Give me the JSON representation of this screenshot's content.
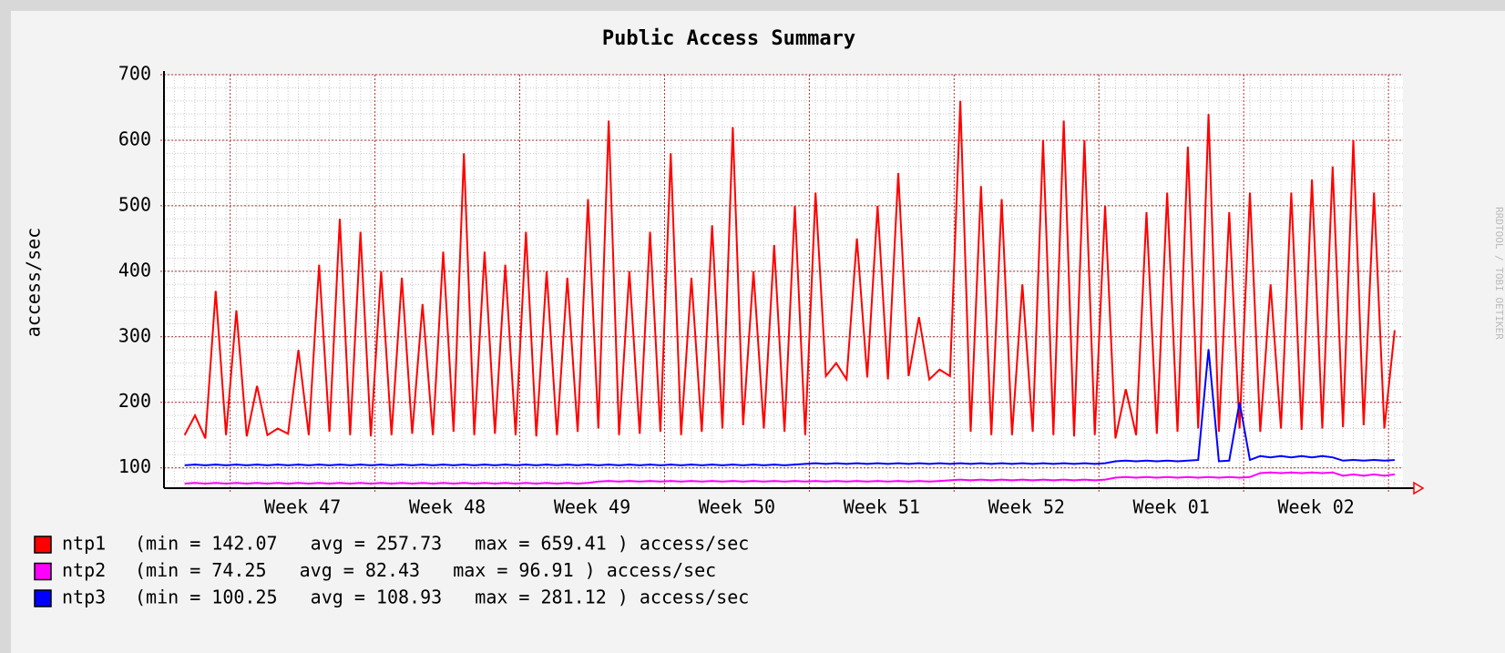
{
  "chart_data": {
    "type": "line",
    "title": "Public Access Summary",
    "y_label": "access/sec",
    "watermark": "RRDTOOL / TOBI OETIKER",
    "xlim": [
      0,
      59.9
    ],
    "ylim": [
      69,
      700
    ],
    "yticks": [
      100,
      200,
      300,
      400,
      500,
      600,
      700
    ],
    "xticks": [
      {
        "value": 6.7,
        "label": "Week 47"
      },
      {
        "value": 13.7,
        "label": "Week 48"
      },
      {
        "value": 20.7,
        "label": "Week 49"
      },
      {
        "value": 27.7,
        "label": "Week 50"
      },
      {
        "value": 34.7,
        "label": "Week 51"
      },
      {
        "value": 41.7,
        "label": "Week 52"
      },
      {
        "value": 48.7,
        "label": "Week 01"
      },
      {
        "value": 55.7,
        "label": "Week 02"
      }
    ],
    "xgrid_major": [
      3.2,
      10.2,
      17.2,
      24.2,
      31.2,
      38.2,
      45.2,
      52.2,
      59.2
    ],
    "xgrid_minor_step": 0.5,
    "ygrid_minor_step": 20,
    "grid": true,
    "x": [
      1,
      1.5,
      2,
      2.5,
      3,
      3.5,
      4,
      4.5,
      5,
      5.5,
      6,
      6.5,
      7,
      7.5,
      8,
      8.5,
      9,
      9.5,
      10,
      10.5,
      11,
      11.5,
      12,
      12.5,
      13,
      13.5,
      14,
      14.5,
      15,
      15.5,
      16,
      16.5,
      17,
      17.5,
      18,
      18.5,
      19,
      19.5,
      20,
      20.5,
      21,
      21.5,
      22,
      22.5,
      23,
      23.5,
      24,
      24.5,
      25,
      25.5,
      26,
      26.5,
      27,
      27.5,
      28,
      28.5,
      29,
      29.5,
      30,
      30.5,
      31,
      31.5,
      32,
      32.5,
      33,
      33.5,
      34,
      34.5,
      35,
      35.5,
      36,
      36.5,
      37,
      37.5,
      38,
      38.5,
      39,
      39.5,
      40,
      40.5,
      41,
      41.5,
      42,
      42.5,
      43,
      43.5,
      44,
      44.5,
      45,
      45.5,
      46,
      46.5,
      47,
      47.5,
      48,
      48.5,
      49,
      49.5,
      50,
      50.5,
      51,
      51.5,
      52,
      52.5,
      53,
      53.5,
      54,
      54.5,
      55,
      55.5,
      56,
      56.5,
      57,
      57.5,
      58,
      58.5,
      59,
      59.5
    ],
    "series": [
      {
        "name": "ntp1",
        "legend_text": "(min = 142.07   avg = 257.73   max = 659.41 ) access/sec",
        "color": "#ff0000",
        "values": [
          150,
          180,
          145,
          370,
          150,
          340,
          148,
          225,
          150,
          160,
          152,
          280,
          150,
          410,
          155,
          480,
          150,
          460,
          148,
          400,
          150,
          390,
          152,
          350,
          150,
          430,
          155,
          580,
          150,
          430,
          152,
          410,
          150,
          460,
          148,
          400,
          150,
          390,
          155,
          510,
          160,
          630,
          150,
          400,
          152,
          460,
          155,
          580,
          150,
          390,
          155,
          470,
          160,
          620,
          165,
          400,
          160,
          440,
          155,
          500,
          150,
          520,
          240,
          260,
          235,
          450,
          238,
          500,
          235,
          550,
          240,
          330,
          235,
          250,
          240,
          660,
          155,
          530,
          150,
          510,
          150,
          380,
          155,
          600,
          150,
          630,
          148,
          600,
          150,
          500,
          145,
          220,
          150,
          490,
          152,
          520,
          155,
          590,
          160,
          640,
          155,
          490,
          160,
          520,
          155,
          380,
          160,
          520,
          158,
          540,
          160,
          560,
          162,
          600,
          165,
          520,
          160,
          310
        ]
      },
      {
        "name": "ntp2",
        "legend_text": "(min = 74.25   avg = 82.43   max = 96.91 ) access/sec",
        "color": "#ff00ff",
        "values": [
          76,
          77,
          76,
          77,
          76,
          77,
          76,
          77,
          76,
          77,
          76,
          77,
          76,
          77,
          76,
          77,
          76,
          77,
          76,
          77,
          76,
          77,
          76,
          77,
          76,
          77,
          76,
          77,
          76,
          77,
          76,
          77,
          76,
          77,
          76,
          77,
          76,
          77,
          76,
          77,
          79,
          80,
          79,
          80,
          79,
          80,
          79,
          80,
          79,
          80,
          79,
          80,
          79,
          80,
          79,
          80,
          79,
          80,
          79,
          80,
          79,
          80,
          79,
          80,
          79,
          80,
          79,
          80,
          79,
          80,
          79,
          80,
          79,
          80,
          81,
          82,
          81,
          82,
          81,
          82,
          81,
          82,
          81,
          82,
          81,
          82,
          81,
          82,
          81,
          82,
          85,
          86,
          85,
          86,
          85,
          86,
          85,
          86,
          85,
          86,
          85,
          86,
          85,
          86,
          92,
          93,
          92,
          93,
          92,
          93,
          92,
          93,
          88,
          90,
          88,
          90,
          88,
          90
        ]
      },
      {
        "name": "ntp3",
        "legend_text": "(min = 100.25   avg = 108.93   max = 281.12 ) access/sec",
        "color": "#0000ff",
        "values": [
          104,
          105,
          104,
          105,
          104,
          105,
          104,
          105,
          104,
          105,
          104,
          105,
          104,
          105,
          104,
          105,
          104,
          105,
          104,
          105,
          104,
          105,
          104,
          105,
          104,
          105,
          104,
          105,
          104,
          105,
          104,
          105,
          104,
          105,
          104,
          105,
          104,
          105,
          104,
          105,
          104,
          105,
          104,
          105,
          104,
          105,
          104,
          105,
          104,
          105,
          104,
          105,
          104,
          105,
          104,
          105,
          104,
          105,
          104,
          105,
          106,
          107,
          106,
          107,
          106,
          107,
          106,
          107,
          106,
          107,
          106,
          107,
          106,
          107,
          106,
          107,
          106,
          107,
          106,
          107,
          106,
          107,
          106,
          107,
          106,
          107,
          106,
          107,
          106,
          107,
          110,
          111,
          110,
          111,
          110,
          111,
          110,
          111,
          112,
          281,
          110,
          111,
          200,
          112,
          118,
          116,
          118,
          116,
          118,
          116,
          118,
          116,
          111,
          112,
          111,
          112,
          111,
          112
        ]
      }
    ]
  }
}
